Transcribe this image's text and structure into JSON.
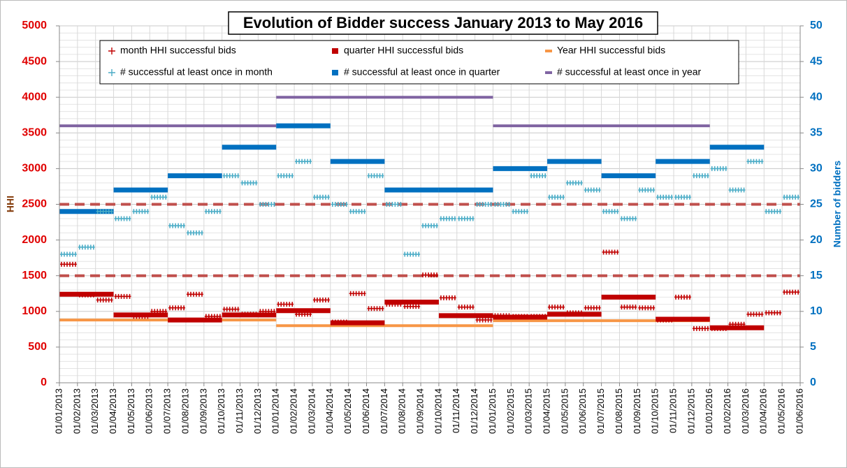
{
  "chart_data": {
    "type": "step",
    "title": "Evolution of Bidder success January 2013 to May 2016",
    "y_label": "HHI",
    "y2_label": "Number of bidders",
    "xlim": [
      "01/01/2013",
      "01/06/2016"
    ],
    "xticks": [
      "01/01/2013",
      "01/02/2013",
      "01/03/2013",
      "01/04/2013",
      "01/05/2013",
      "01/06/2013",
      "01/07/2013",
      "01/08/2013",
      "01/09/2013",
      "01/10/2013",
      "01/11/2013",
      "01/12/2013",
      "01/01/2014",
      "01/02/2014",
      "01/03/2014",
      "01/04/2014",
      "01/05/2014",
      "01/06/2014",
      "01/07/2014",
      "01/08/2014",
      "01/09/2014",
      "01/10/2014",
      "01/11/2014",
      "01/12/2014",
      "01/01/2015",
      "01/02/2015",
      "01/03/2015",
      "01/04/2015",
      "01/05/2015",
      "01/06/2015",
      "01/07/2015",
      "01/08/2015",
      "01/09/2015",
      "01/10/2015",
      "01/11/2015",
      "01/12/2015",
      "01/01/2016",
      "01/02/2016",
      "01/03/2016",
      "01/04/2016",
      "01/05/2016",
      "01/06/2016"
    ],
    "ylim": [
      0,
      5000
    ],
    "yticks": [
      0,
      500,
      1000,
      1500,
      2000,
      2500,
      3000,
      3500,
      4000,
      4500,
      5000
    ],
    "y2lim": [
      0,
      50
    ],
    "y2ticks": [
      0,
      5,
      10,
      15,
      20,
      25,
      30,
      35,
      40,
      45,
      50
    ],
    "grid": true,
    "hlines": [
      1500,
      2500
    ],
    "hline_color": "#c0504d",
    "series": [
      {
        "name": "month HHI successful bids",
        "color": "#c00000",
        "style": "plus",
        "x": [
          "01/01/2013",
          "01/02/2013",
          "01/03/2013",
          "01/04/2013",
          "01/05/2013",
          "01/06/2013",
          "01/07/2013",
          "01/08/2013",
          "01/09/2013",
          "01/10/2013",
          "01/11/2013",
          "01/12/2013",
          "01/01/2014",
          "01/02/2014",
          "01/03/2014",
          "01/04/2014",
          "01/05/2014",
          "01/06/2014",
          "01/07/2014",
          "01/08/2014",
          "01/09/2014",
          "01/10/2014",
          "01/11/2014",
          "01/12/2014",
          "01/01/2015",
          "01/02/2015",
          "01/03/2015",
          "01/04/2015",
          "01/05/2015",
          "01/06/2015",
          "01/07/2015",
          "01/08/2015",
          "01/09/2015",
          "01/10/2015",
          "01/11/2015",
          "01/12/2015",
          "01/01/2016",
          "01/02/2016",
          "01/03/2016",
          "01/04/2016",
          "01/05/2016"
        ],
        "values": [
          1660,
          1230,
          1160,
          1210,
          930,
          1000,
          1050,
          1240,
          930,
          1030,
          960,
          1000,
          1100,
          960,
          1160,
          850,
          1250,
          1040,
          1100,
          1070,
          1510,
          1190,
          1060,
          880,
          940,
          930,
          930,
          1060,
          980,
          1050,
          1830,
          1060,
          1050,
          880,
          1200,
          760,
          760,
          820,
          960,
          980,
          1270
        ]
      },
      {
        "name": "quarter HHI successful bids",
        "color": "#c00000",
        "style": "bar",
        "x": [
          "01/01/2013",
          "01/04/2013",
          "01/07/2013",
          "01/10/2013",
          "01/01/2014",
          "01/04/2014",
          "01/07/2014",
          "01/10/2014",
          "01/01/2015",
          "01/04/2015",
          "01/07/2015",
          "01/10/2015",
          "01/01/2016"
        ],
        "values": [
          1240,
          950,
          880,
          950,
          1010,
          840,
          1130,
          940,
          920,
          960,
          1200,
          890,
          770
        ]
      },
      {
        "name": "Year HHI successful bids",
        "color": "#f79646",
        "style": "line",
        "x": [
          "01/01/2013",
          "01/01/2014",
          "01/01/2015"
        ],
        "values": [
          880,
          800,
          870
        ]
      },
      {
        "name": "# successful at least once in month",
        "color": "#4bacc6",
        "style": "plus",
        "axis": "y2",
        "x": [
          "01/01/2013",
          "01/02/2013",
          "01/03/2013",
          "01/04/2013",
          "01/05/2013",
          "01/06/2013",
          "01/07/2013",
          "01/08/2013",
          "01/09/2013",
          "01/10/2013",
          "01/11/2013",
          "01/12/2013",
          "01/01/2014",
          "01/02/2014",
          "01/03/2014",
          "01/04/2014",
          "01/05/2014",
          "01/06/2014",
          "01/07/2014",
          "01/08/2014",
          "01/09/2014",
          "01/10/2014",
          "01/11/2014",
          "01/12/2014",
          "01/01/2015",
          "01/02/2015",
          "01/03/2015",
          "01/04/2015",
          "01/05/2015",
          "01/06/2015",
          "01/07/2015",
          "01/08/2015",
          "01/09/2015",
          "01/10/2015",
          "01/11/2015",
          "01/12/2015",
          "01/01/2016",
          "01/02/2016",
          "01/03/2016",
          "01/04/2016",
          "01/05/2016"
        ],
        "values": [
          18,
          19,
          24,
          23,
          24,
          26,
          22,
          21,
          24,
          29,
          28,
          25,
          29,
          31,
          26,
          25,
          24,
          29,
          25,
          18,
          22,
          23,
          23,
          25,
          25,
          24,
          29,
          26,
          28,
          27,
          24,
          23,
          27,
          26,
          26,
          29,
          30,
          27,
          31,
          24,
          26
        ]
      },
      {
        "name": "# successful at least once in quarter",
        "color": "#0070c0",
        "style": "bar",
        "axis": "y2",
        "x": [
          "01/01/2013",
          "01/04/2013",
          "01/07/2013",
          "01/10/2013",
          "01/01/2014",
          "01/04/2014",
          "01/07/2014",
          "01/10/2014",
          "01/01/2015",
          "01/04/2015",
          "01/07/2015",
          "01/10/2015",
          "01/01/2016"
        ],
        "values": [
          24,
          27,
          29,
          33,
          36,
          31,
          27,
          27,
          30,
          31,
          29,
          31,
          33
        ]
      },
      {
        "name": "# successful at least once in year",
        "color": "#8064a2",
        "style": "line",
        "axis": "y2",
        "x": [
          "01/01/2013",
          "01/01/2014",
          "01/01/2015"
        ],
        "values": [
          36,
          40,
          36
        ]
      }
    ]
  }
}
